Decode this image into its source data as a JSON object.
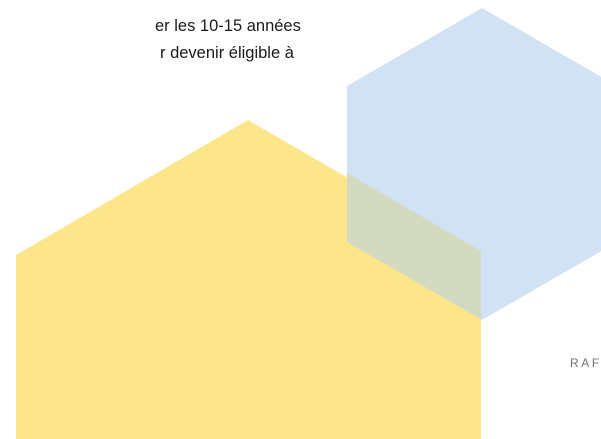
{
  "article": {
    "lines": [
      "                                       ",
      "er les 10-15 années",
      "r devenir éligible à"
    ]
  },
  "side_label": "RAF",
  "colors": {
    "yellow_house": "#fde68a",
    "blue_hexagon": "#bfd7f0",
    "overlap": "#d4dac0",
    "text": "#1a1a1a",
    "label": "#707070"
  }
}
